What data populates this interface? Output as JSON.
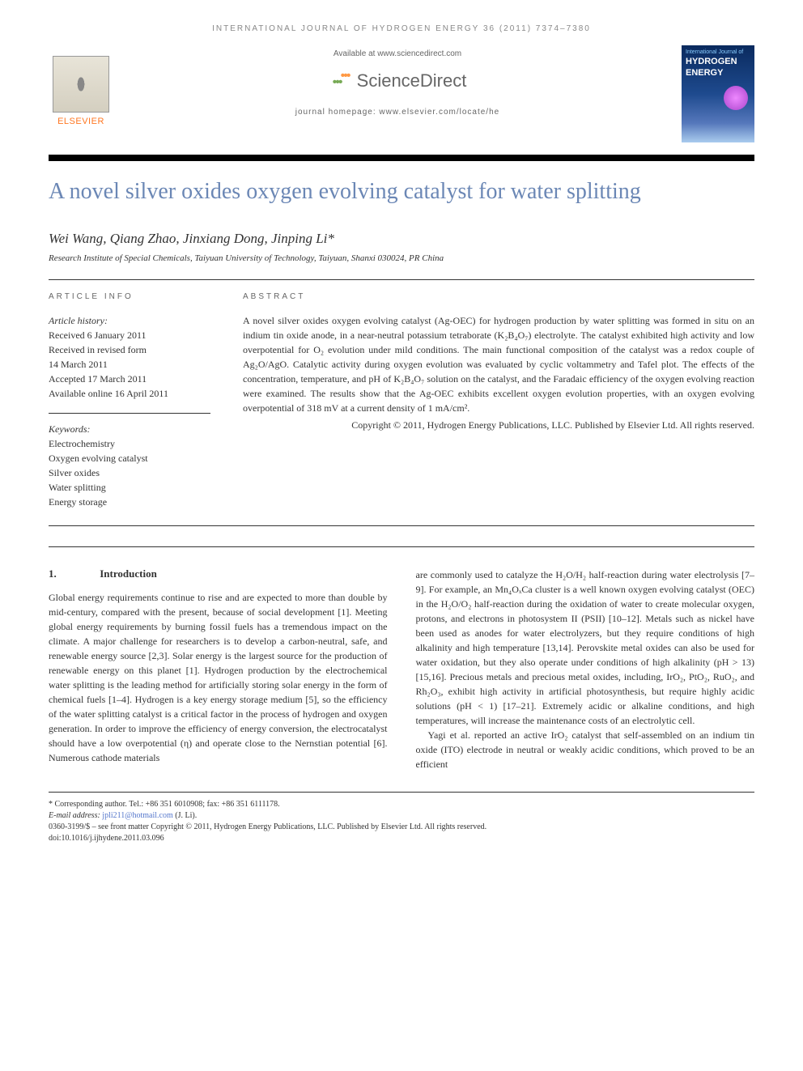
{
  "header": {
    "journal_citation": "INTERNATIONAL JOURNAL OF HYDROGEN ENERGY 36 (2011) 7374–7380",
    "available_text": "Available at www.sciencedirect.com",
    "sciencedirect": "ScienceDirect",
    "homepage_text": "journal homepage: www.elsevier.com/locate/he",
    "elsevier_text": "ELSEVIER",
    "cover_subtitle": "International Journal of",
    "cover_title1": "HYDROGEN",
    "cover_title2": "ENERGY"
  },
  "article": {
    "title": "A novel silver oxides oxygen evolving catalyst for water splitting",
    "authors": "Wei Wang, Qiang Zhao, Jinxiang Dong, Jinping Li*",
    "affiliation": "Research Institute of Special Chemicals, Taiyuan University of Technology, Taiyuan, Shanxi 030024, PR China"
  },
  "info": {
    "label": "ARTICLE INFO",
    "history_label": "Article history:",
    "received": "Received 6 January 2011",
    "revised1": "Received in revised form",
    "revised2": "14 March 2011",
    "accepted": "Accepted 17 March 2011",
    "online": "Available online 16 April 2011",
    "keywords_label": "Keywords:",
    "keywords": [
      "Electrochemistry",
      "Oxygen evolving catalyst",
      "Silver oxides",
      "Water splitting",
      "Energy storage"
    ]
  },
  "abstract": {
    "label": "ABSTRACT",
    "text": "A novel silver oxides oxygen evolving catalyst (Ag-OEC) for hydrogen production by water splitting was formed in situ on an indium tin oxide anode, in a near-neutral potassium tetraborate (K₂B₄O₇) electrolyte. The catalyst exhibited high activity and low overpotential for O₂ evolution under mild conditions. The main functional composition of the catalyst was a redox couple of Ag₂O/AgO. Catalytic activity during oxygen evolution was evaluated by cyclic voltammetry and Tafel plot. The effects of the concentration, temperature, and pH of K₂B₄O₇ solution on the catalyst, and the Faradaic efficiency of the oxygen evolving reaction were examined. The results show that the Ag-OEC exhibits excellent oxygen evolution properties, with an oxygen evolving overpotential of 318 mV at a current density of 1 mA/cm².",
    "copyright": "Copyright © 2011, Hydrogen Energy Publications, LLC. Published by Elsevier Ltd. All rights reserved."
  },
  "body": {
    "section_num": "1.",
    "section_title": "Introduction",
    "col1": "Global energy requirements continue to rise and are expected to more than double by mid-century, compared with the present, because of social development [1]. Meeting global energy requirements by burning fossil fuels has a tremendous impact on the climate. A major challenge for researchers is to develop a carbon-neutral, safe, and renewable energy source [2,3]. Solar energy is the largest source for the production of renewable energy on this planet [1]. Hydrogen production by the electrochemical water splitting is the leading method for artificially storing solar energy in the form of chemical fuels [1–4]. Hydrogen is a key energy storage medium [5], so the efficiency of the water splitting catalyst is a critical factor in the process of hydrogen and oxygen generation. In order to improve the efficiency of energy conversion, the electrocatalyst should have a low overpotential (η) and operate close to the Nernstian potential [6]. Numerous cathode materials",
    "col2_p1": "are commonly used to catalyze the H₂O/H₂ half-reaction during water electrolysis [7–9]. For example, an Mn₄OₓCa cluster is a well known oxygen evolving catalyst (OEC) in the H₂O/O₂ half-reaction during the oxidation of water to create molecular oxygen, protons, and electrons in photosystem II (PSII) [10–12]. Metals such as nickel have been used as anodes for water electrolyzers, but they require conditions of high alkalinity and high temperature [13,14]. Perovskite metal oxides can also be used for water oxidation, but they also operate under conditions of high alkalinity (pH > 13) [15,16]. Precious metals and precious metal oxides, including, IrO₂, PtO₂, RuO₂, and Rh₂O₃, exhibit high activity in artificial photosynthesis, but require highly acidic solutions (pH < 1) [17–21]. Extremely acidic or alkaline conditions, and high temperatures, will increase the maintenance costs of an electrolytic cell.",
    "col2_p2": "Yagi et al. reported an active IrO₂ catalyst that self-assembled on an indium tin oxide (ITO) electrode in neutral or weakly acidic conditions, which proved to be an efficient"
  },
  "footer": {
    "corr_label": "* Corresponding author.",
    "corr_contact": " Tel.: +86 351 6010908; fax: +86 351 6111178.",
    "email_label": "E-mail address: ",
    "email": "jpli211@hotmail.com",
    "email_suffix": " (J. Li).",
    "issn": "0360-3199/$ – see front matter Copyright © 2011, Hydrogen Energy Publications, LLC. Published by Elsevier Ltd. All rights reserved.",
    "doi": "doi:10.1016/j.ijhydene.2011.03.096"
  },
  "colors": {
    "title_color": "#6b87b5",
    "link_color": "#5577cc",
    "elsevier_orange": "#ff7722",
    "text_color": "#333333",
    "header_gray": "#888888"
  },
  "typography": {
    "title_fontsize": 28,
    "body_fontsize": 12,
    "authors_fontsize": 17,
    "header_fontsize": 10
  }
}
